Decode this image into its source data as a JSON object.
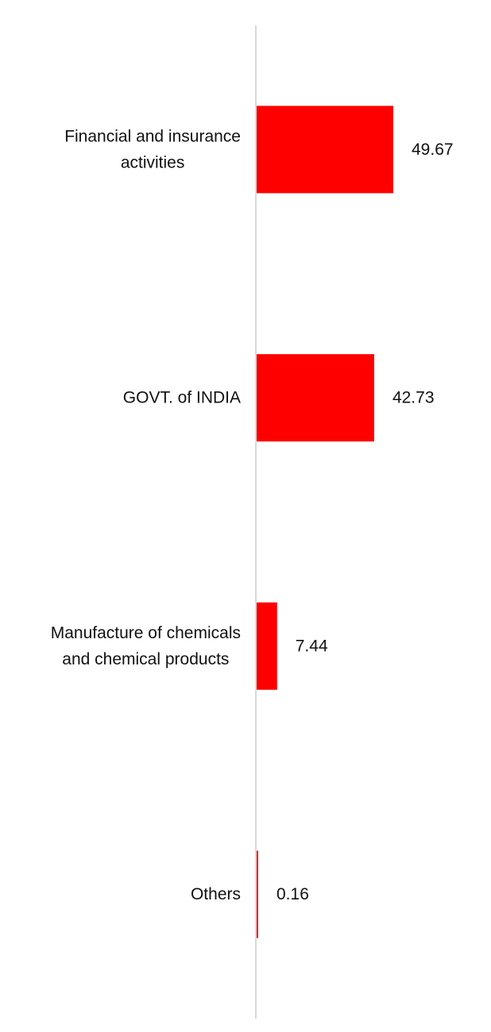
{
  "chart_data": {
    "type": "bar",
    "orientation": "horizontal",
    "categories": [
      [
        "Financial and insurance",
        "activities"
      ],
      [
        "GOVT. of INDIA"
      ],
      [
        "Manufacture of chemicals",
        "and chemical products"
      ],
      [
        "Others"
      ]
    ],
    "values": [
      49.67,
      42.73,
      7.44,
      0.16
    ],
    "value_labels": [
      "49.67",
      "42.73",
      "7.44",
      "0.16"
    ],
    "title": "",
    "xlabel": "",
    "ylabel": "",
    "xlim": [
      0,
      100
    ],
    "grid": false,
    "legend": "none",
    "bar_color": "#ff0000",
    "axis_color": "#d9d9d9"
  }
}
